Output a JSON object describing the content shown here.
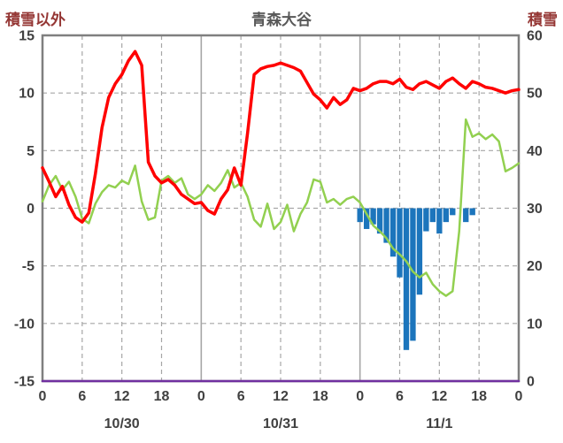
{
  "header": {
    "left_axis_label": "積雪以外",
    "title": "青森大谷",
    "right_axis_label": "積雪"
  },
  "colors": {
    "axis_title_text": "#953735",
    "chart_title_text": "#595959",
    "tick_text": "#404040",
    "gridline": "#a6a6a6",
    "plot_border": "#7f7f7f",
    "red_line": "#ff0000",
    "green_line": "#92d050",
    "blue_bars": "#1c75bc",
    "purple_line": "#7030a0"
  },
  "chart_data": {
    "type": "line",
    "title": "青森大谷",
    "left_axis": {
      "label": "積雪以外",
      "min": -15,
      "max": 15,
      "ticks": [
        15,
        10,
        5,
        0,
        -5,
        -10,
        -15
      ]
    },
    "right_axis": {
      "label": "積雪",
      "min": 0,
      "max": 60,
      "ticks": [
        60,
        50,
        40,
        30,
        20,
        10,
        0
      ]
    },
    "x_axis": {
      "total_hours": 72,
      "hours_per_day": 24,
      "tick_interval": 6,
      "tick_labels": [
        "0",
        "6",
        "12",
        "18",
        "0",
        "6",
        "12",
        "18",
        "0",
        "6",
        "12",
        "18",
        "0"
      ],
      "day_labels": [
        "10/30",
        "10/31",
        "11/1"
      ]
    },
    "grid": "on",
    "legend": "none",
    "series": [
      {
        "name": "blue-bars",
        "type": "bar",
        "axis": "left",
        "color": "#1c75bc",
        "values": [
          0,
          0,
          0,
          0,
          0,
          0,
          0,
          0,
          0,
          0,
          0,
          0,
          0,
          0,
          0,
          0,
          0,
          0,
          0,
          0,
          0,
          0,
          0,
          0,
          0,
          0,
          0,
          0,
          0,
          0,
          0,
          0,
          0,
          0,
          0,
          0,
          0,
          0,
          0,
          0,
          0,
          0,
          0,
          0,
          0,
          0,
          0,
          0,
          -1.2,
          -1.8,
          -1.4,
          -2.2,
          -3.0,
          -4.2,
          -6.0,
          -12.3,
          -11.5,
          -7.5,
          -2.0,
          -1.2,
          -2.2,
          -1.2,
          -0.6,
          0,
          -1.2,
          -0.6,
          0,
          0,
          0,
          0,
          0,
          0,
          0
        ]
      },
      {
        "name": "green-line",
        "type": "line",
        "axis": "left",
        "color": "#92d050",
        "width": 2.5,
        "values": [
          0.6,
          2.0,
          2.8,
          1.6,
          2.3,
          1.0,
          -0.9,
          -1.3,
          0.4,
          1.4,
          2.0,
          1.8,
          2.4,
          2.1,
          3.7,
          0.6,
          -1.0,
          -0.8,
          2.4,
          2.8,
          2.2,
          2.6,
          1.2,
          0.8,
          1.2,
          2.0,
          1.5,
          2.2,
          3.3,
          1.8,
          2.2,
          1.0,
          -1.0,
          -1.6,
          0.4,
          -1.8,
          -1.2,
          0.3,
          -2.0,
          -0.5,
          0.5,
          2.5,
          2.3,
          0.5,
          0.8,
          0.3,
          0.8,
          1.0,
          0.5,
          -0.5,
          -1.5,
          -2.0,
          -2.6,
          -3.5,
          -4.0,
          -4.6,
          -5.5,
          -6.0,
          -5.6,
          -6.6,
          -7.2,
          -7.6,
          -7.2,
          -2.0,
          7.7,
          6.2,
          6.5,
          6.0,
          6.4,
          5.8,
          3.2,
          3.5,
          3.9
        ]
      },
      {
        "name": "red-line",
        "type": "line",
        "axis": "left",
        "color": "#ff0000",
        "width": 3.5,
        "values": [
          3.5,
          2.3,
          1.0,
          1.9,
          0.3,
          -0.8,
          -1.2,
          -0.4,
          3.0,
          7.0,
          9.6,
          10.8,
          11.6,
          12.8,
          13.6,
          12.4,
          4.0,
          2.8,
          2.2,
          2.5,
          2.0,
          1.2,
          0.8,
          0.4,
          0.5,
          -0.2,
          -0.5,
          0.8,
          1.6,
          3.5,
          2.0,
          6.5,
          11.6,
          12.1,
          12.3,
          12.4,
          12.6,
          12.4,
          12.2,
          11.9,
          10.9,
          9.9,
          9.4,
          8.7,
          9.6,
          9.0,
          9.4,
          10.4,
          10.2,
          10.4,
          10.8,
          11.0,
          11.0,
          10.8,
          11.2,
          10.5,
          10.3,
          10.8,
          11.0,
          10.7,
          10.4,
          11.0,
          11.3,
          10.8,
          10.4,
          11.0,
          10.8,
          10.5,
          10.4,
          10.2,
          10.0,
          10.2,
          10.3
        ]
      },
      {
        "name": "purple-line",
        "type": "line",
        "axis": "right",
        "color": "#7030a0",
        "width": 2.5,
        "values": [
          0,
          0,
          0,
          0,
          0,
          0,
          0,
          0,
          0,
          0,
          0,
          0,
          0,
          0,
          0,
          0,
          0,
          0,
          0,
          0,
          0,
          0,
          0,
          0,
          0,
          0,
          0,
          0,
          0,
          0,
          0,
          0,
          0,
          0,
          0,
          0,
          0,
          0,
          0,
          0,
          0,
          0,
          0,
          0,
          0,
          0,
          0,
          0,
          0,
          0,
          0,
          0,
          0,
          0,
          0,
          0,
          0,
          0,
          0,
          0,
          0,
          0,
          0,
          0,
          0,
          0,
          0,
          0,
          0,
          0,
          0,
          0,
          0
        ]
      }
    ]
  }
}
